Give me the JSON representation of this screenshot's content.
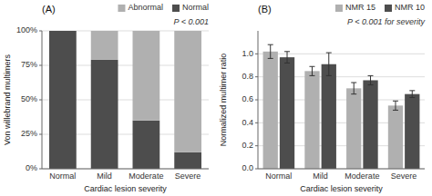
{
  "chart_data": [
    {
      "type": "bar",
      "stacked": true,
      "title": "(A)",
      "categories": [
        "Normal",
        "Mild",
        "Moderate",
        "Severe"
      ],
      "series": [
        {
          "name": "Normal",
          "color": "#4d4d4d",
          "values": [
            100,
            79,
            35,
            12
          ]
        },
        {
          "name": "Abnormal",
          "color": "#b0b0b0",
          "values": [
            0,
            21,
            65,
            88
          ]
        }
      ],
      "xlabel": "Cardiac lesion severity",
      "ylabel": "Von willebrand multimers",
      "ylim": [
        0,
        100
      ],
      "yticks": [
        {
          "value": 0,
          "label": "0%"
        },
        {
          "value": 25,
          "label": "25%"
        },
        {
          "value": 50,
          "label": "50%"
        },
        {
          "value": 75,
          "label": "75%"
        },
        {
          "value": 100,
          "label": "100%"
        }
      ],
      "grid": true,
      "legend": "upper right",
      "annotations": [
        "P < 0.001"
      ]
    },
    {
      "type": "bar",
      "title": "(B)",
      "categories": [
        "Normal",
        "Mild",
        "Moderate",
        "Severe"
      ],
      "series": [
        {
          "name": "NMR 15",
          "color": "#b0b0b0",
          "values": [
            1.02,
            0.85,
            0.7,
            0.55
          ],
          "errors": [
            0.06,
            0.04,
            0.05,
            0.04
          ]
        },
        {
          "name": "NMR 10",
          "color": "#4d4d4d",
          "values": [
            0.97,
            0.91,
            0.77,
            0.65
          ],
          "errors": [
            0.05,
            0.1,
            0.04,
            0.03
          ]
        }
      ],
      "xlabel": "Cardiac lesion severity",
      "ylabel": "Normalized multimer ratio",
      "ylim": [
        0,
        1.2
      ],
      "yticks": [
        {
          "value": 0,
          "label": "0.0"
        },
        0.2,
        0.4,
        0.6,
        0.8,
        {
          "value": 1.0,
          "label": "1.0"
        }
      ],
      "grid": true,
      "legend": "upper right",
      "annotations": [
        "P < 0.001 for severity"
      ]
    }
  ]
}
